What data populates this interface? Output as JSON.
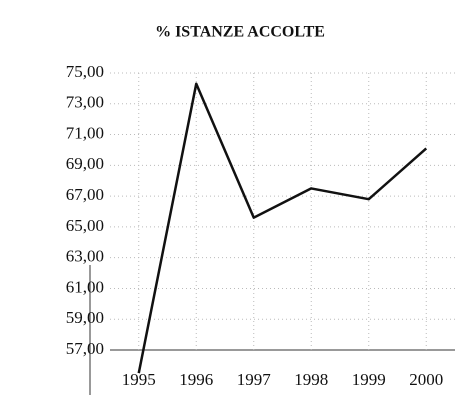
{
  "chart_data": {
    "type": "line",
    "title": "% ISTANZE ACCOLTE",
    "categories": [
      "1995",
      "1996",
      "1997",
      "1998",
      "1999",
      "2000"
    ],
    "series": [
      {
        "name": "% istanze accolte",
        "color": "#111111",
        "values": [
          55.5,
          74.3,
          65.6,
          67.5,
          66.8,
          70.1
        ]
      }
    ],
    "ylim": [
      57,
      75
    ],
    "yticks": [
      {
        "value": 57,
        "label": "57,00"
      },
      {
        "value": 59,
        "label": "59,00"
      },
      {
        "value": 61,
        "label": "61,00"
      },
      {
        "value": 63,
        "label": "63,00"
      },
      {
        "value": 65,
        "label": "65,00"
      },
      {
        "value": 67,
        "label": "67,00"
      },
      {
        "value": 69,
        "label": "69,00"
      },
      {
        "value": 71,
        "label": "71,00"
      },
      {
        "value": 73,
        "label": "73,00"
      },
      {
        "value": 75,
        "label": "75,00"
      }
    ],
    "grid": true
  }
}
